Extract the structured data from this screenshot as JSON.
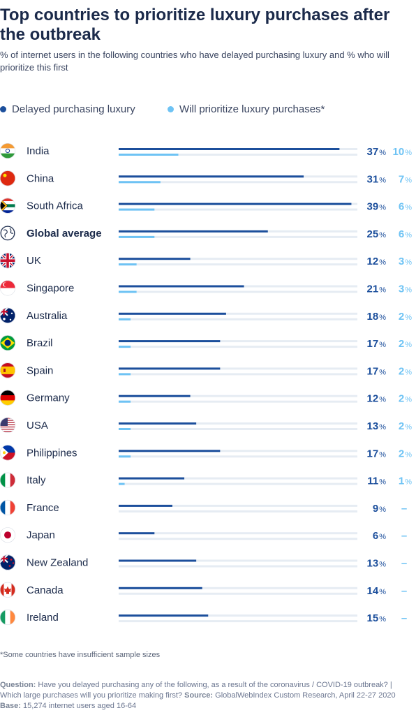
{
  "title": "Top countries to prioritize luxury purchases after the outbreak",
  "subtitle": "% of internet users in the following countries who have delayed purchasing luxury and % who will prioritize this first",
  "colors": {
    "delayed": "#1c4f9c",
    "prioritize": "#6ec3f4",
    "track": "#e6ecf3",
    "text": "#1b2a4a"
  },
  "footnote": "*Some countries have insufficient sample sizes",
  "source": {
    "question_label": "Question:",
    "question_text": "Have you delayed purchasing any of the following, as a result of the coronavirus / COVID-19 outbreak? | Which large purchases will you prioritize making first?",
    "source_label": "Source:",
    "source_text": "GlobalWebIndex Custom Research, April 22-27 2020",
    "base_label": "Base:",
    "base_text": "15,274 internet users aged 16-64"
  },
  "chart_data": {
    "type": "bar",
    "orientation": "horizontal",
    "grid": false,
    "legend_position": "top-left",
    "xlim": [
      0,
      40
    ],
    "value_suffix": "%",
    "missing_symbol": "–",
    "categories": [
      "India",
      "China",
      "South Africa",
      "Global average",
      "UK",
      "Singapore",
      "Australia",
      "Brazil",
      "Spain",
      "Germany",
      "USA",
      "Philippines",
      "Italy",
      "France",
      "Japan",
      "New Zealand",
      "Canada",
      "Ireland"
    ],
    "emphasized_category": "Global average",
    "flag_icons": [
      "india-flag-icon",
      "china-flag-icon",
      "south-africa-flag-icon",
      "globe-icon",
      "uk-flag-icon",
      "singapore-flag-icon",
      "australia-flag-icon",
      "brazil-flag-icon",
      "spain-flag-icon",
      "germany-flag-icon",
      "usa-flag-icon",
      "philippines-flag-icon",
      "italy-flag-icon",
      "france-flag-icon",
      "japan-flag-icon",
      "new-zealand-flag-icon",
      "canada-flag-icon",
      "ireland-flag-icon"
    ],
    "series": [
      {
        "name": "Delayed purchasing luxury",
        "values": [
          37,
          31,
          39,
          25,
          12,
          21,
          18,
          17,
          17,
          12,
          13,
          17,
          11,
          9,
          6,
          13,
          14,
          15
        ]
      },
      {
        "name": "Will prioritize luxury purchases*",
        "values": [
          10,
          7,
          6,
          6,
          3,
          3,
          2,
          2,
          2,
          2,
          2,
          2,
          1,
          null,
          null,
          null,
          null,
          null
        ]
      }
    ]
  }
}
